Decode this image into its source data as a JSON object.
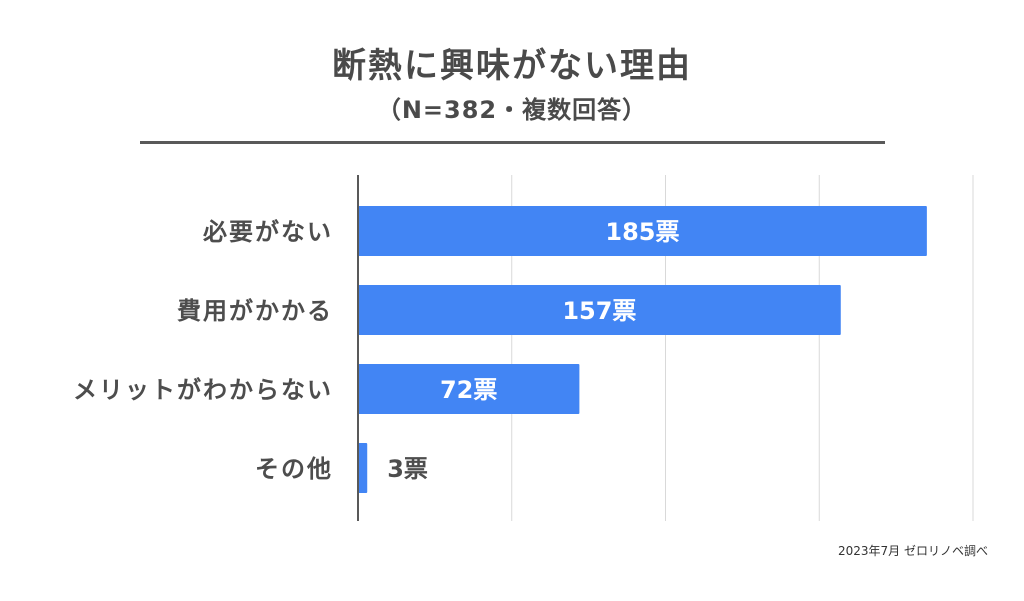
{
  "header": {
    "title": "断熱に興味がない理由",
    "subtitle": "（N=382・複数回答）"
  },
  "footer": {
    "source": "2023年7月 ゼロリノベ調べ"
  },
  "colors": {
    "bar": "#4285f4",
    "grid": "#d9d9d9",
    "axis": "#595959",
    "label_text": "#4d4d4d"
  },
  "chart_data": {
    "type": "bar",
    "orientation": "horizontal",
    "categories": [
      "必要がない",
      "費用がかかる",
      "メリットがわからない",
      "その他"
    ],
    "values": [
      185,
      157,
      72,
      3
    ],
    "data_labels": [
      "185票",
      "157票",
      "72票",
      "3票"
    ],
    "xlim": [
      0,
      200
    ],
    "grid": true
  }
}
